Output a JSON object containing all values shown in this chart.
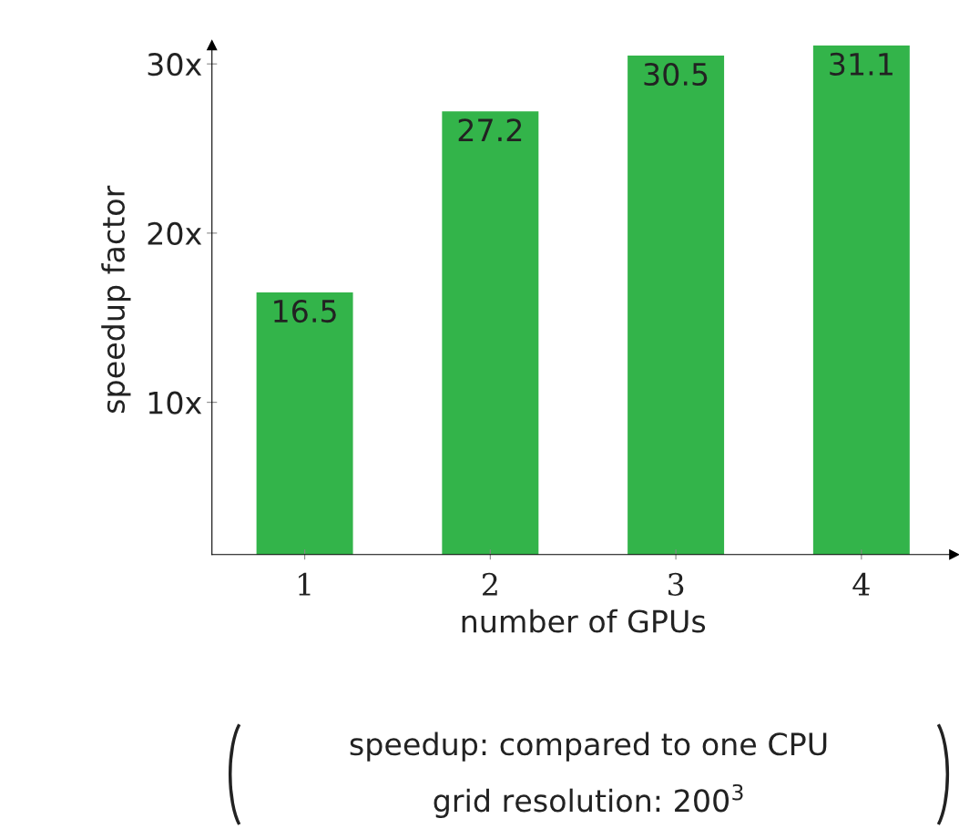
{
  "chart_data": {
    "type": "bar",
    "xlabel": "number of GPUs",
    "ylabel": "speedup factor",
    "x": [
      1,
      2,
      3,
      4
    ],
    "values": [
      16.5,
      27.2,
      30.5,
      31.1
    ],
    "color": "#33b44a",
    "data_labels": true,
    "xlim": [
      0.5,
      4.5
    ],
    "xticks": [
      1,
      2,
      3,
      4
    ],
    "ylim": [
      1,
      31.1
    ],
    "yticks": [
      {
        "value": 10,
        "label": "10x"
      },
      {
        "value": 20,
        "label": "20x"
      },
      {
        "value": 30,
        "label": "30x"
      }
    ],
    "grid": false,
    "legend": false,
    "annotations": [
      "speedup: compared to one CPU",
      "grid resolution: 200$^{3}$"
    ]
  }
}
